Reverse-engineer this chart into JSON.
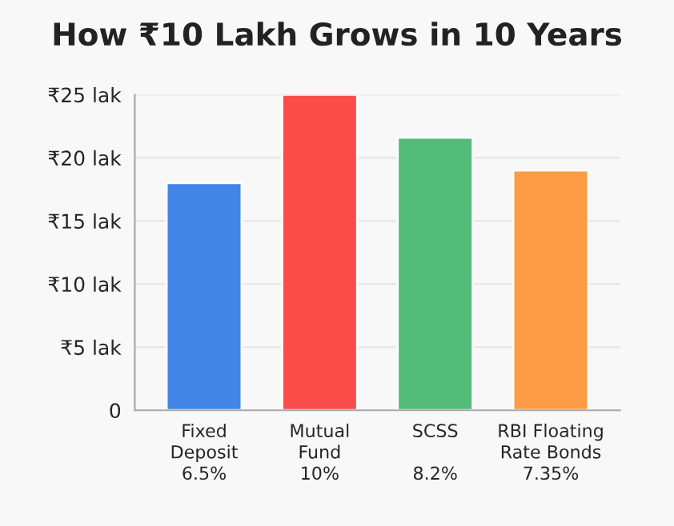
{
  "chart_data": {
    "type": "bar",
    "title": "How ₹10 Lakh Grows in 10 Years",
    "categories": [
      "Fixed\nDeposit\n6.5%",
      "Mutual\nFund\n10%",
      "SCSS\n\n8.2%",
      "RBI Floating\nRate Bonds\n7.35%"
    ],
    "values": [
      18,
      25,
      21.6,
      19
    ],
    "colors": [
      "#4285e6",
      "#fa4d4a",
      "#52bb78",
      "#fd9c46"
    ],
    "ylim": [
      0,
      25
    ],
    "yticks": [
      0,
      {
        "value": 5,
        "label": "₹5 lak"
      },
      {
        "value": 10,
        "label": "₹10 lak"
      },
      {
        "value": 15,
        "label": "₹15 lak"
      },
      {
        "value": 20,
        "label": "₹20 lak"
      },
      {
        "value": 25,
        "label": "₹25 lak"
      }
    ],
    "grid": "y"
  }
}
